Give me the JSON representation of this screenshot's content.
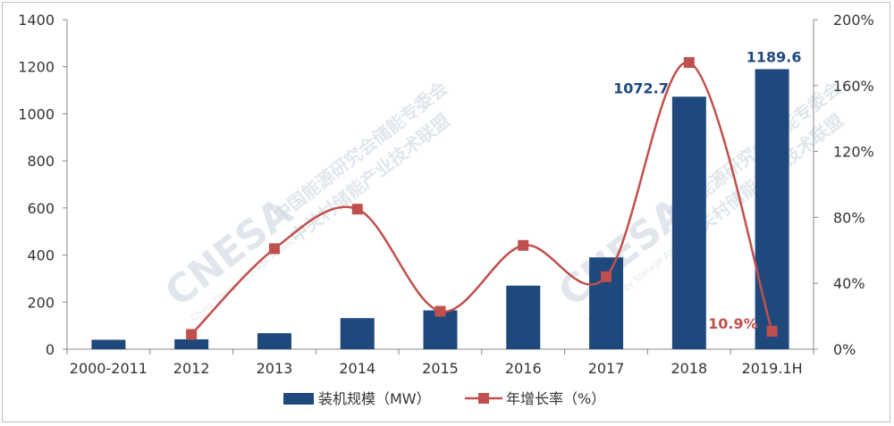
{
  "chart_data": {
    "type": "bar",
    "categories": [
      "2000-2011",
      "2012",
      "2013",
      "2014",
      "2015",
      "2016",
      "2017",
      "2018",
      "2019.1H"
    ],
    "series": [
      {
        "name": "装机规模（MW）",
        "type": "bar",
        "axis": "left",
        "color": "#1f497d",
        "values": [
          40,
          42,
          68,
          132,
          165,
          270,
          390,
          1072.7,
          1189.6
        ]
      },
      {
        "name": "年增长率（%）",
        "type": "line",
        "axis": "right",
        "color": "#c0504d",
        "values": [
          null,
          9,
          61,
          85,
          23,
          63,
          44,
          174,
          10.9
        ]
      }
    ],
    "data_labels": [
      {
        "series": 0,
        "index": 7,
        "text": "1072.7"
      },
      {
        "series": 0,
        "index": 8,
        "text": "1189.6"
      },
      {
        "series": 1,
        "index": 8,
        "text": "10.9%"
      }
    ],
    "y_left": {
      "range": [
        0,
        1400
      ],
      "ticks": [
        "0",
        "200",
        "400",
        "600",
        "800",
        "1000",
        "1200",
        "1400"
      ]
    },
    "y_right": {
      "range": [
        0,
        200
      ],
      "ticks": [
        "0%",
        "40%",
        "80%",
        "120%",
        "160%",
        "200%"
      ]
    },
    "grid": false,
    "legend_position": "bottom"
  },
  "watermark": {
    "logo": "CNESA",
    "line1": "中国能源研究会储能专委会",
    "line2": "中关村储能产业技术联盟",
    "sub": "China Energy Storage Alliance"
  }
}
